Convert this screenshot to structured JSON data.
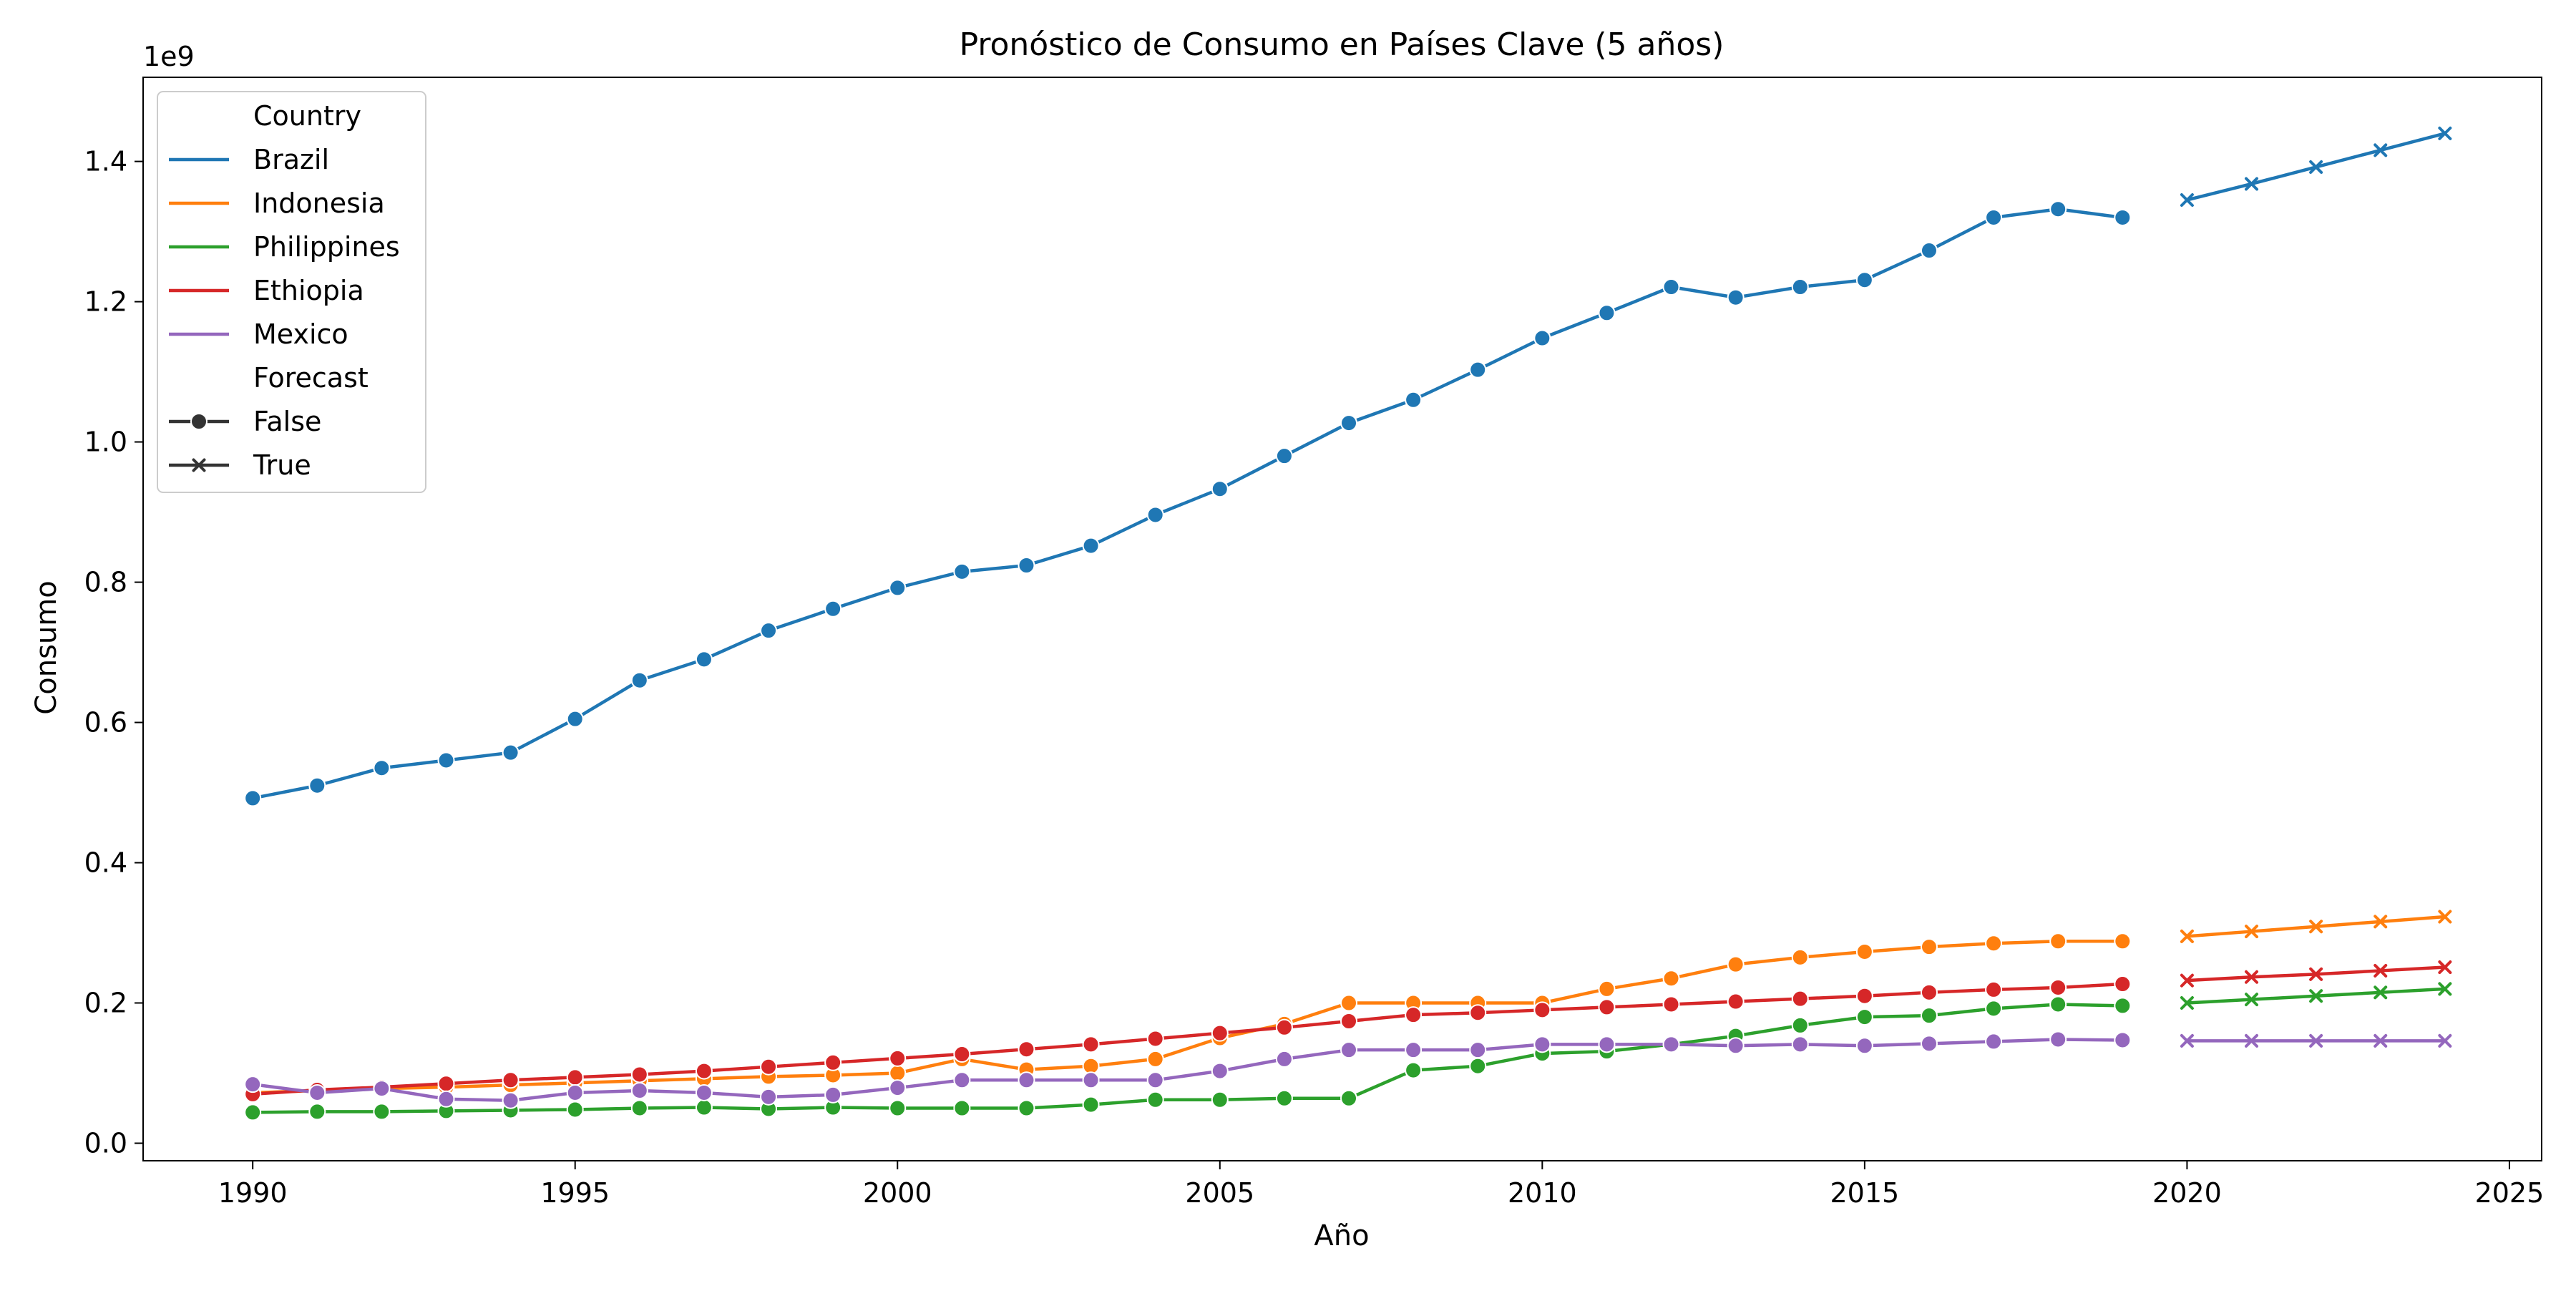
{
  "chart_data": {
    "type": "line",
    "title": "Pronóstico de Consumo en Países Clave (5 años)",
    "xlabel": "Año",
    "ylabel": "Consumo",
    "y_offset_label": "1e9",
    "xlim": [
      1988.3,
      2025.5
    ],
    "ylim": [
      -0.025,
      1.52
    ],
    "x_ticks": [
      1990,
      1995,
      2000,
      2005,
      2010,
      2015,
      2020,
      2025
    ],
    "y_ticks": [
      0.0,
      0.2,
      0.4,
      0.6,
      0.8,
      1.0,
      1.2,
      1.4
    ],
    "y_tick_labels": [
      "0.0",
      "0.2",
      "0.4",
      "0.6",
      "0.8",
      "1.0",
      "1.2",
      "1.4"
    ],
    "grid": false,
    "legend": {
      "placement": "top-left",
      "hue_title": "Country",
      "style_title": "Forecast",
      "style_entries": [
        {
          "label": "False",
          "marker": "circle"
        },
        {
          "label": "True",
          "marker": "x"
        }
      ]
    },
    "historical_x": [
      1990,
      1991,
      1992,
      1993,
      1994,
      1995,
      1996,
      1997,
      1998,
      1999,
      2000,
      2001,
      2002,
      2003,
      2004,
      2005,
      2006,
      2007,
      2008,
      2009,
      2010,
      2011,
      2012,
      2013,
      2014,
      2015,
      2016,
      2017,
      2018,
      2019
    ],
    "forecast_x": [
      2020,
      2021,
      2022,
      2023,
      2024
    ],
    "series": [
      {
        "name": "Brazil",
        "color": "#1f77b4",
        "historical": [
          0.492,
          0.51,
          0.535,
          0.546,
          0.557,
          0.605,
          0.66,
          0.69,
          0.731,
          0.762,
          0.792,
          0.815,
          0.824,
          0.852,
          0.896,
          0.933,
          0.98,
          1.027,
          1.06,
          1.103,
          1.148,
          1.184,
          1.221,
          1.206,
          1.221,
          1.231,
          1.273,
          1.32,
          1.332,
          1.32
        ],
        "forecast": [
          1.345,
          1.368,
          1.392,
          1.416,
          1.44
        ]
      },
      {
        "name": "Indonesia",
        "color": "#ff7f0e",
        "historical": [
          0.072,
          0.075,
          0.078,
          0.08,
          0.083,
          0.086,
          0.089,
          0.092,
          0.095,
          0.097,
          0.1,
          0.12,
          0.105,
          0.11,
          0.12,
          0.15,
          0.17,
          0.2,
          0.2,
          0.2,
          0.2,
          0.22,
          0.235,
          0.255,
          0.265,
          0.273,
          0.28,
          0.285,
          0.288,
          0.288
        ],
        "forecast": [
          0.295,
          0.302,
          0.309,
          0.316,
          0.323
        ]
      },
      {
        "name": "Philippines",
        "color": "#2ca02c",
        "historical": [
          0.044,
          0.045,
          0.045,
          0.046,
          0.047,
          0.048,
          0.05,
          0.051,
          0.049,
          0.051,
          0.05,
          0.05,
          0.05,
          0.055,
          0.062,
          0.062,
          0.064,
          0.064,
          0.104,
          0.11,
          0.128,
          0.131,
          0.141,
          0.153,
          0.168,
          0.18,
          0.182,
          0.192,
          0.198,
          0.196
        ],
        "forecast": [
          0.2,
          0.205,
          0.21,
          0.215,
          0.22
        ]
      },
      {
        "name": "Ethiopia",
        "color": "#d62728",
        "historical": [
          0.07,
          0.076,
          0.08,
          0.085,
          0.09,
          0.094,
          0.098,
          0.103,
          0.109,
          0.115,
          0.121,
          0.127,
          0.134,
          0.141,
          0.149,
          0.157,
          0.165,
          0.174,
          0.183,
          0.186,
          0.19,
          0.194,
          0.198,
          0.202,
          0.206,
          0.21,
          0.215,
          0.219,
          0.222,
          0.227
        ],
        "forecast": [
          0.232,
          0.237,
          0.241,
          0.246,
          0.251
        ]
      },
      {
        "name": "Mexico",
        "color": "#9467bd",
        "historical": [
          0.084,
          0.072,
          0.078,
          0.063,
          0.061,
          0.072,
          0.075,
          0.072,
          0.066,
          0.069,
          0.079,
          0.09,
          0.09,
          0.09,
          0.09,
          0.103,
          0.12,
          0.133,
          0.133,
          0.133,
          0.141,
          0.141,
          0.141,
          0.139,
          0.141,
          0.139,
          0.142,
          0.145,
          0.148,
          0.147
        ],
        "forecast": [
          0.146,
          0.146,
          0.146,
          0.146,
          0.146
        ]
      }
    ]
  }
}
